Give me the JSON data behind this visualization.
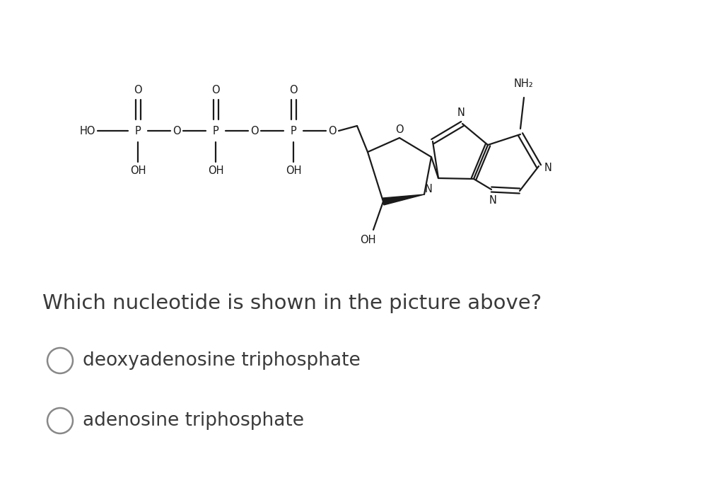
{
  "bg_color": "#ffffff",
  "text_color": "#3a3a3a",
  "question": "Which nucleotide is shown in the picture above?",
  "options": [
    "deoxyadenosine triphosphate",
    "adenosine triphosphate"
  ],
  "question_fontsize": 21,
  "option_fontsize": 19,
  "molecule_color": "#1a1a1a",
  "fig_width": 10.24,
  "fig_height": 6.93,
  "lw": 1.6,
  "mol_fontsize": 10.5
}
